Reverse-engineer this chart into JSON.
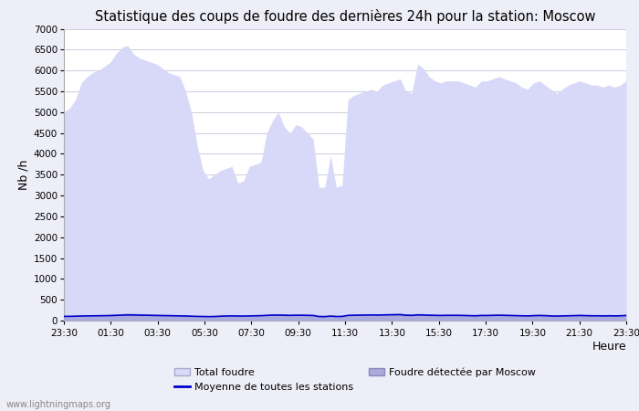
{
  "title": "Statistique des coups de foudre des dernières 24h pour la station: Moscow",
  "xlabel": "Heure",
  "ylabel": "Nb /h",
  "xlim": [
    0,
    48
  ],
  "ylim": [
    0,
    7000
  ],
  "yticks": [
    0,
    500,
    1000,
    1500,
    2000,
    2500,
    3000,
    3500,
    4000,
    4500,
    5000,
    5500,
    6000,
    6500,
    7000
  ],
  "xtick_labels": [
    "23:30",
    "01:30",
    "03:30",
    "05:30",
    "07:30",
    "09:30",
    "11:30",
    "13:30",
    "15:30",
    "17:30",
    "19:30",
    "21:30",
    "23:30"
  ],
  "xtick_positions": [
    0,
    4,
    8,
    12,
    16,
    20,
    24,
    28,
    32,
    36,
    40,
    44,
    48
  ],
  "bg_color": "#eeeef8",
  "plot_bg_color": "#ffffff",
  "grid_color": "#ccccdd",
  "total_foudre_color": "#d8d8f8",
  "total_foudre_edge_color": "#d8d8f8",
  "moscow_color": "#aaaadd",
  "moscow_edge_color": "#aaaadd",
  "moyenne_color": "#0000cc",
  "watermark": "www.lightningmaps.org",
  "total_foudre_values": [
    5000,
    5100,
    5300,
    5700,
    5850,
    5950,
    6000,
    6100,
    6200,
    6400,
    6550,
    6600,
    6400,
    6300,
    6250,
    6200,
    6150,
    6050,
    5950,
    5900,
    5850,
    5500,
    5000,
    4200,
    3600,
    3400,
    3500,
    3600,
    3650,
    3700,
    3300,
    3350,
    3700,
    3750,
    3800,
    4500,
    4800,
    5000,
    4650,
    4500,
    4700,
    4650,
    4500,
    4350,
    3200,
    3200,
    3950,
    3200,
    3250,
    5300,
    5400,
    5450,
    5500,
    5550,
    5500,
    5650,
    5700,
    5750,
    5800,
    5500,
    5450,
    6150,
    6050,
    5850,
    5750,
    5700,
    5750,
    5750,
    5750,
    5700,
    5650,
    5600,
    5750,
    5750,
    5800,
    5850,
    5800,
    5750,
    5700,
    5600,
    5550,
    5700,
    5750,
    5650,
    5550,
    5450,
    5550,
    5650,
    5700,
    5750,
    5700,
    5650,
    5650,
    5600,
    5650,
    5600,
    5650,
    5750
  ],
  "moscow_values": [
    100,
    110,
    115,
    120,
    125,
    130,
    135,
    140,
    150,
    160,
    170,
    180,
    175,
    170,
    165,
    160,
    155,
    150,
    145,
    140,
    135,
    130,
    120,
    110,
    100,
    95,
    100,
    110,
    115,
    120,
    115,
    110,
    120,
    125,
    130,
    150,
    160,
    165,
    160,
    150,
    155,
    155,
    150,
    145,
    105,
    100,
    115,
    100,
    105,
    145,
    150,
    155,
    160,
    165,
    160,
    165,
    170,
    175,
    180,
    160,
    155,
    175,
    170,
    160,
    155,
    150,
    155,
    155,
    155,
    150,
    145,
    140,
    150,
    150,
    155,
    160,
    155,
    150,
    145,
    140,
    135,
    145,
    150,
    145,
    135,
    130,
    135,
    140,
    145,
    150,
    145,
    140,
    140,
    135,
    140,
    135,
    140,
    150
  ],
  "moyenne_values": [
    100,
    102,
    105,
    110,
    112,
    114,
    116,
    118,
    120,
    125,
    130,
    135,
    133,
    130,
    128,
    125,
    122,
    120,
    118,
    115,
    112,
    110,
    105,
    100,
    98,
    95,
    98,
    105,
    110,
    112,
    110,
    108,
    112,
    115,
    118,
    125,
    130,
    132,
    128,
    125,
    128,
    128,
    125,
    122,
    98,
    95,
    108,
    98,
    100,
    125,
    128,
    130,
    132,
    135,
    132,
    135,
    138,
    140,
    142,
    128,
    125,
    135,
    132,
    128,
    125,
    122,
    125,
    125,
    125,
    122,
    118,
    115,
    122,
    122,
    125,
    128,
    125,
    122,
    118,
    115,
    112,
    118,
    122,
    118,
    112,
    108,
    112,
    115,
    118,
    122,
    118,
    115,
    115,
    112,
    115,
    112,
    115,
    122
  ]
}
